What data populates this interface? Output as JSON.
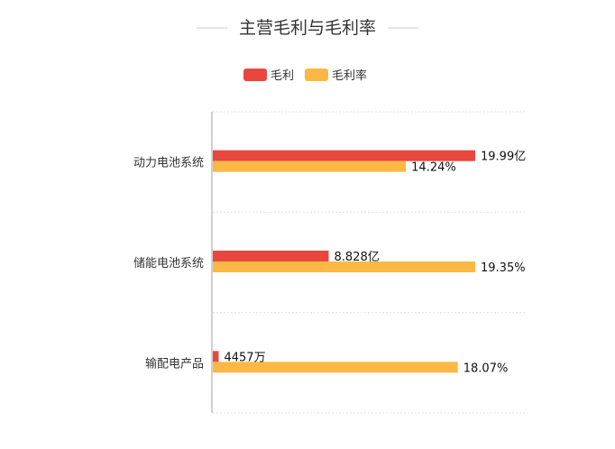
{
  "chart_data": {
    "type": "bar",
    "orientation": "horizontal",
    "title": "主营毛利与毛利率",
    "categories": [
      "动力电池系统",
      "储能电池系统",
      "输配电产品"
    ],
    "series": [
      {
        "name": "毛利",
        "color": "#e8473f",
        "values": [
          19.99,
          8.828,
          0.4457
        ],
        "unit": "亿",
        "labels": [
          "19.99亿",
          "8.828亿",
          "4457万"
        ]
      },
      {
        "name": "毛利率",
        "color": "#fbb845",
        "values": [
          14.24,
          19.35,
          18.07
        ],
        "unit": "%",
        "labels": [
          "14.24%",
          "19.35%",
          "18.07%"
        ]
      }
    ],
    "legend_position": "top-center",
    "grid": true,
    "xlabel": "",
    "ylabel": ""
  }
}
